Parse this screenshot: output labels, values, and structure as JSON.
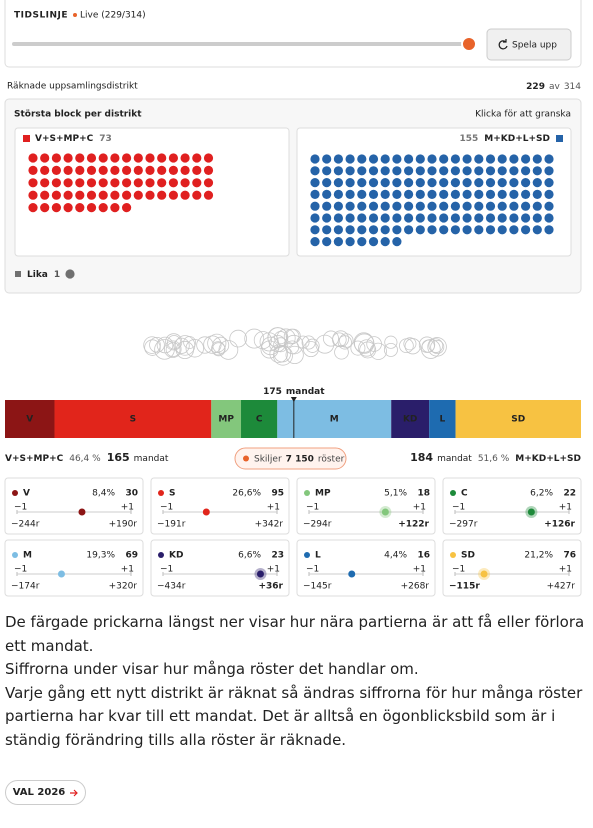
{
  "timeline": {
    "label": "TIDSLINJE",
    "live": "Live (229/314)",
    "play": "Spela upp"
  },
  "counted": {
    "label": "Räknade uppsamlingsdistrikt",
    "count": 229,
    "of": "av",
    "total": 314
  },
  "blocks": {
    "title": "Största block per distrikt",
    "hint": "Klicka för att granska",
    "left": {
      "name": "V+S+MP+C",
      "districts": 73,
      "color": "#e02020"
    },
    "right": {
      "name": "M+KD+L+SD",
      "districts": 155,
      "color": "#2563a8"
    },
    "tie": {
      "name": "Lika",
      "districts": 1,
      "color": "#707070"
    }
  },
  "seats": {
    "majority": 175,
    "majority_unit": "mandat",
    "left": {
      "name": "V+S+MP+C",
      "share": "46,4 %",
      "seats": 165,
      "unit": "mandat"
    },
    "right": {
      "name": "M+KD+L+SD",
      "share": "51,6 %",
      "seats": 184,
      "unit": "mandat"
    },
    "difference": {
      "label": "Skiljer",
      "votes": "7 150",
      "unit": "röster"
    }
  },
  "scale": {
    "lim": [
      -1,
      1
    ],
    "ticks": [
      {
        "value": -1,
        "label": "−1"
      },
      {
        "value": 1,
        "label": "+1"
      }
    ]
  },
  "parties": [
    {
      "name": "V",
      "color": "#8c1515",
      "share": "8,4%",
      "seats": 30,
      "lose": "−244r",
      "gain": "+190r",
      "position": 0.14,
      "emphasis": null
    },
    {
      "name": "S",
      "color": "#e1251b",
      "share": "26,6%",
      "seats": 95,
      "lose": "−191r",
      "gain": "+342r",
      "position": -0.24,
      "emphasis": null
    },
    {
      "name": "MP",
      "color": "#83c77c",
      "share": "5,1%",
      "seats": 18,
      "lose": "−294r",
      "gain": "+122r",
      "position": 0.34,
      "emphasis": "gain"
    },
    {
      "name": "C",
      "color": "#1d8a3a",
      "share": "6,2%",
      "seats": 22,
      "lose": "−297r",
      "gain": "+126r",
      "position": 0.34,
      "emphasis": "gain"
    },
    {
      "name": "M",
      "color": "#7dbde3",
      "share": "19,3%",
      "seats": 69,
      "lose": "−174r",
      "gain": "+320r",
      "position": -0.22,
      "emphasis": null
    },
    {
      "name": "KD",
      "color": "#2a1e6a",
      "share": "6,6%",
      "seats": 23,
      "lose": "−434r",
      "gain": "+36r",
      "position": 0.71,
      "emphasis": "gain"
    },
    {
      "name": "L",
      "color": "#1e6bb0",
      "share": "4,4%",
      "seats": 16,
      "lose": "−145r",
      "gain": "+268r",
      "position": -0.25,
      "emphasis": null
    },
    {
      "name": "SD",
      "color": "#f7c242",
      "share": "21,2%",
      "seats": 76,
      "lose": "−115r",
      "gain": "+427r",
      "position": -0.49,
      "emphasis": "lose"
    }
  ],
  "explanation": [
    "De färgade prickarna längst ner visar hur nära partierna är att få eller förlora ett mandat.",
    "Siffrorna under visar hur många röster det handlar om.",
    "Varje gång ett nytt distrikt är räknat så ändras siffrorna för hur många röster partierna har kvar till ett mandat. Det är alltså en ögonblicksbild som är i ständig förändring tills alla röster är räknade."
  ],
  "link": "VAL 2026"
}
